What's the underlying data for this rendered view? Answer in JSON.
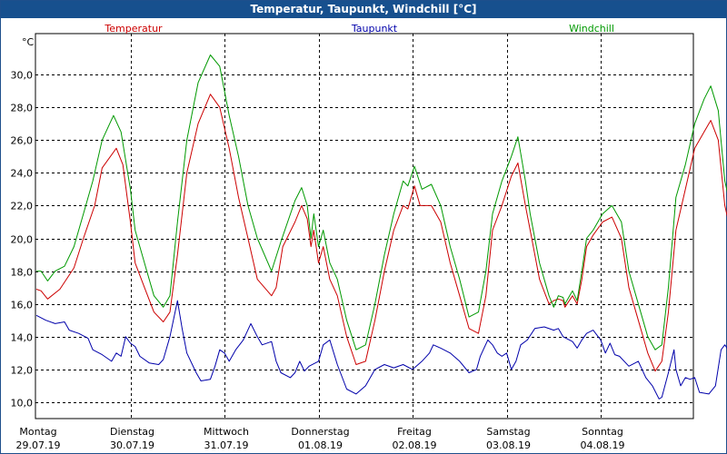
{
  "window": {
    "title": "Temperatur, Taupunkt, Windchill [°C]"
  },
  "chart_data": {
    "type": "line",
    "title": "Temperatur, Taupunkt, Windchill [°C]",
    "ylabel": "°C",
    "ylim": [
      9,
      32.5
    ],
    "xlim": [
      0,
      7.2
    ],
    "yticks": [
      10,
      12,
      14,
      16,
      18,
      20,
      22,
      24,
      26,
      28,
      30
    ],
    "ytick_labels": [
      "10,0",
      "12,0",
      "14,0",
      "16,0",
      "18,0",
      "20,0",
      "22,0",
      "24,0",
      "26,0",
      "28,0",
      "30,0"
    ],
    "grid": true,
    "days": [
      {
        "x": 0,
        "weekday": "Montag",
        "date": "29.07.19"
      },
      {
        "x": 1,
        "weekday": "Dienstag",
        "date": "30.07.19"
      },
      {
        "x": 2,
        "weekday": "Mittwoch",
        "date": "31.07.19"
      },
      {
        "x": 3,
        "weekday": "Donnerstag",
        "date": "01.08.19"
      },
      {
        "x": 4,
        "weekday": "Freitag",
        "date": "02.08.19"
      },
      {
        "x": 5,
        "weekday": "Samstag",
        "date": "03.08.19"
      },
      {
        "x": 6,
        "weekday": "Sonntag",
        "date": "04.08.19"
      }
    ],
    "series": [
      {
        "name": "Temperatur",
        "color": "#cc0000",
        "points": [
          [
            0.0,
            16.9
          ],
          [
            0.05,
            16.8
          ],
          [
            0.12,
            16.3
          ],
          [
            0.25,
            16.9
          ],
          [
            0.4,
            18.2
          ],
          [
            0.5,
            20.0
          ],
          [
            0.62,
            22.0
          ],
          [
            0.7,
            24.3
          ],
          [
            0.85,
            25.5
          ],
          [
            0.92,
            24.5
          ],
          [
            1.0,
            21.0
          ],
          [
            1.05,
            18.5
          ],
          [
            1.15,
            17.0
          ],
          [
            1.25,
            15.5
          ],
          [
            1.35,
            14.9
          ],
          [
            1.42,
            15.5
          ],
          [
            1.5,
            19.0
          ],
          [
            1.6,
            24.0
          ],
          [
            1.72,
            27.0
          ],
          [
            1.85,
            28.8
          ],
          [
            1.95,
            28.0
          ],
          [
            2.05,
            25.5
          ],
          [
            2.15,
            22.5
          ],
          [
            2.25,
            20.0
          ],
          [
            2.35,
            17.5
          ],
          [
            2.5,
            16.5
          ],
          [
            2.55,
            17.0
          ],
          [
            2.62,
            19.5
          ],
          [
            2.75,
            21.0
          ],
          [
            2.82,
            22.0
          ],
          [
            2.88,
            21.2
          ],
          [
            2.92,
            19.5
          ],
          [
            2.95,
            20.5
          ],
          [
            3.0,
            18.5
          ],
          [
            3.05,
            19.5
          ],
          [
            3.12,
            17.5
          ],
          [
            3.2,
            16.5
          ],
          [
            3.3,
            14.0
          ],
          [
            3.4,
            12.3
          ],
          [
            3.5,
            12.5
          ],
          [
            3.6,
            15.0
          ],
          [
            3.7,
            18.0
          ],
          [
            3.8,
            20.5
          ],
          [
            3.9,
            22.0
          ],
          [
            3.95,
            21.8
          ],
          [
            4.02,
            23.2
          ],
          [
            4.08,
            22.0
          ],
          [
            4.2,
            22.0
          ],
          [
            4.3,
            21.0
          ],
          [
            4.4,
            18.5
          ],
          [
            4.5,
            16.5
          ],
          [
            4.6,
            14.5
          ],
          [
            4.7,
            14.2
          ],
          [
            4.78,
            16.5
          ],
          [
            4.85,
            20.5
          ],
          [
            4.95,
            22.0
          ],
          [
            5.05,
            23.8
          ],
          [
            5.12,
            24.6
          ],
          [
            5.2,
            22.0
          ],
          [
            5.25,
            20.5
          ],
          [
            5.35,
            17.5
          ],
          [
            5.45,
            16.0
          ],
          [
            5.5,
            16.2
          ],
          [
            5.55,
            16.3
          ],
          [
            5.6,
            16.2
          ],
          [
            5.62,
            15.8
          ],
          [
            5.7,
            16.5
          ],
          [
            5.75,
            16.0
          ],
          [
            5.8,
            17.5
          ],
          [
            5.85,
            19.5
          ],
          [
            5.92,
            20.2
          ],
          [
            6.02,
            21.0
          ],
          [
            6.12,
            21.3
          ],
          [
            6.22,
            20.0
          ],
          [
            6.3,
            17.0
          ],
          [
            6.4,
            15.0
          ],
          [
            6.5,
            13.0
          ],
          [
            6.58,
            11.9
          ],
          [
            6.65,
            12.5
          ],
          [
            6.72,
            15.5
          ],
          [
            6.8,
            20.5
          ],
          [
            6.9,
            23.0
          ],
          [
            7.0,
            25.5
          ],
          [
            7.1,
            26.5
          ],
          [
            7.17,
            27.2
          ],
          [
            7.25,
            26.0
          ],
          [
            7.32,
            22.0
          ],
          [
            7.4,
            20.0
          ],
          [
            7.45,
            19.5
          ]
        ]
      },
      {
        "name": "Taupunkt",
        "color": "#0000aa",
        "points": [
          [
            0.0,
            15.3
          ],
          [
            0.1,
            15.0
          ],
          [
            0.2,
            14.8
          ],
          [
            0.3,
            14.9
          ],
          [
            0.35,
            14.4
          ],
          [
            0.45,
            14.2
          ],
          [
            0.55,
            13.9
          ],
          [
            0.6,
            13.2
          ],
          [
            0.7,
            12.9
          ],
          [
            0.8,
            12.5
          ],
          [
            0.85,
            13.0
          ],
          [
            0.9,
            12.8
          ],
          [
            0.95,
            14.0
          ],
          [
            1.0,
            13.6
          ],
          [
            1.05,
            13.4
          ],
          [
            1.1,
            12.8
          ],
          [
            1.2,
            12.4
          ],
          [
            1.3,
            12.3
          ],
          [
            1.35,
            12.6
          ],
          [
            1.42,
            14.0
          ],
          [
            1.5,
            16.2
          ],
          [
            1.55,
            14.5
          ],
          [
            1.6,
            13.0
          ],
          [
            1.7,
            11.8
          ],
          [
            1.75,
            11.3
          ],
          [
            1.85,
            11.4
          ],
          [
            1.9,
            12.2
          ],
          [
            1.95,
            13.2
          ],
          [
            2.0,
            13.0
          ],
          [
            2.05,
            12.5
          ],
          [
            2.12,
            13.2
          ],
          [
            2.2,
            13.8
          ],
          [
            2.28,
            14.8
          ],
          [
            2.35,
            14.0
          ],
          [
            2.4,
            13.5
          ],
          [
            2.5,
            13.7
          ],
          [
            2.55,
            12.5
          ],
          [
            2.6,
            11.8
          ],
          [
            2.7,
            11.5
          ],
          [
            2.75,
            11.8
          ],
          [
            2.8,
            12.5
          ],
          [
            2.85,
            11.9
          ],
          [
            2.9,
            12.2
          ],
          [
            3.0,
            12.5
          ],
          [
            3.05,
            13.5
          ],
          [
            3.12,
            13.8
          ],
          [
            3.2,
            12.3
          ],
          [
            3.3,
            10.8
          ],
          [
            3.4,
            10.5
          ],
          [
            3.5,
            11.0
          ],
          [
            3.6,
            12.0
          ],
          [
            3.7,
            12.3
          ],
          [
            3.8,
            12.1
          ],
          [
            3.9,
            12.3
          ],
          [
            4.0,
            12.0
          ],
          [
            4.1,
            12.5
          ],
          [
            4.18,
            13.0
          ],
          [
            4.22,
            13.5
          ],
          [
            4.3,
            13.3
          ],
          [
            4.4,
            13.0
          ],
          [
            4.5,
            12.5
          ],
          [
            4.6,
            11.8
          ],
          [
            4.68,
            12.0
          ],
          [
            4.72,
            12.8
          ],
          [
            4.8,
            13.8
          ],
          [
            4.85,
            13.5
          ],
          [
            4.9,
            13.0
          ],
          [
            4.95,
            12.8
          ],
          [
            5.0,
            13.0
          ],
          [
            5.05,
            12.0
          ],
          [
            5.1,
            12.5
          ],
          [
            5.15,
            13.5
          ],
          [
            5.22,
            13.8
          ],
          [
            5.3,
            14.5
          ],
          [
            5.4,
            14.6
          ],
          [
            5.5,
            14.4
          ],
          [
            5.55,
            14.5
          ],
          [
            5.6,
            14.0
          ],
          [
            5.7,
            13.7
          ],
          [
            5.75,
            13.3
          ],
          [
            5.8,
            13.8
          ],
          [
            5.85,
            14.2
          ],
          [
            5.92,
            14.4
          ],
          [
            6.0,
            13.8
          ],
          [
            6.05,
            13.0
          ],
          [
            6.1,
            13.6
          ],
          [
            6.15,
            12.9
          ],
          [
            6.2,
            12.8
          ],
          [
            6.3,
            12.2
          ],
          [
            6.4,
            12.5
          ],
          [
            6.48,
            11.5
          ],
          [
            6.55,
            11.0
          ],
          [
            6.62,
            10.2
          ],
          [
            6.65,
            10.3
          ],
          [
            6.72,
            11.8
          ],
          [
            6.78,
            13.2
          ],
          [
            6.8,
            12.0
          ],
          [
            6.85,
            11.0
          ],
          [
            6.9,
            11.5
          ],
          [
            6.95,
            11.4
          ],
          [
            7.0,
            11.5
          ],
          [
            7.05,
            10.6
          ],
          [
            7.15,
            10.5
          ],
          [
            7.22,
            11.0
          ],
          [
            7.28,
            13.2
          ],
          [
            7.32,
            13.5
          ],
          [
            7.38,
            13.0
          ],
          [
            7.45,
            12.9
          ]
        ]
      },
      {
        "name": "Windchill",
        "color": "#009900",
        "points": [
          [
            0.0,
            18.0
          ],
          [
            0.05,
            18.0
          ],
          [
            0.12,
            17.4
          ],
          [
            0.2,
            18.0
          ],
          [
            0.3,
            18.3
          ],
          [
            0.4,
            19.5
          ],
          [
            0.5,
            21.5
          ],
          [
            0.6,
            23.5
          ],
          [
            0.7,
            26.0
          ],
          [
            0.82,
            27.5
          ],
          [
            0.9,
            26.5
          ],
          [
            1.0,
            23.0
          ],
          [
            1.05,
            20.5
          ],
          [
            1.15,
            18.5
          ],
          [
            1.25,
            16.5
          ],
          [
            1.35,
            15.8
          ],
          [
            1.42,
            16.5
          ],
          [
            1.5,
            21.0
          ],
          [
            1.6,
            26.0
          ],
          [
            1.72,
            29.5
          ],
          [
            1.85,
            31.2
          ],
          [
            1.95,
            30.5
          ],
          [
            2.05,
            27.5
          ],
          [
            2.15,
            25.0
          ],
          [
            2.25,
            22.0
          ],
          [
            2.35,
            20.0
          ],
          [
            2.5,
            18.0
          ],
          [
            2.6,
            19.8
          ],
          [
            2.75,
            22.3
          ],
          [
            2.82,
            23.1
          ],
          [
            2.88,
            22.0
          ],
          [
            2.92,
            20.0
          ],
          [
            2.95,
            21.5
          ],
          [
            3.0,
            19.5
          ],
          [
            3.05,
            20.5
          ],
          [
            3.12,
            18.5
          ],
          [
            3.2,
            17.5
          ],
          [
            3.3,
            15.0
          ],
          [
            3.4,
            13.2
          ],
          [
            3.5,
            13.5
          ],
          [
            3.6,
            16.0
          ],
          [
            3.7,
            19.0
          ],
          [
            3.8,
            21.5
          ],
          [
            3.9,
            23.5
          ],
          [
            3.95,
            23.2
          ],
          [
            4.02,
            24.4
          ],
          [
            4.1,
            23.0
          ],
          [
            4.2,
            23.3
          ],
          [
            4.3,
            22.0
          ],
          [
            4.4,
            19.5
          ],
          [
            4.5,
            17.5
          ],
          [
            4.6,
            15.2
          ],
          [
            4.7,
            15.5
          ],
          [
            4.78,
            18.0
          ],
          [
            4.85,
            21.5
          ],
          [
            4.95,
            23.5
          ],
          [
            5.05,
            25.0
          ],
          [
            5.12,
            26.2
          ],
          [
            5.2,
            23.5
          ],
          [
            5.25,
            21.5
          ],
          [
            5.35,
            18.5
          ],
          [
            5.45,
            16.5
          ],
          [
            5.5,
            15.8
          ],
          [
            5.55,
            16.5
          ],
          [
            5.6,
            16.4
          ],
          [
            5.62,
            16.0
          ],
          [
            5.7,
            16.8
          ],
          [
            5.75,
            16.2
          ],
          [
            5.8,
            18.0
          ],
          [
            5.85,
            20.0
          ],
          [
            5.92,
            20.5
          ],
          [
            6.02,
            21.5
          ],
          [
            6.12,
            22.0
          ],
          [
            6.22,
            21.0
          ],
          [
            6.3,
            18.0
          ],
          [
            6.4,
            16.0
          ],
          [
            6.5,
            14.0
          ],
          [
            6.58,
            13.2
          ],
          [
            6.65,
            13.5
          ],
          [
            6.72,
            17.0
          ],
          [
            6.8,
            22.5
          ],
          [
            6.9,
            24.5
          ],
          [
            7.0,
            27.0
          ],
          [
            7.1,
            28.5
          ],
          [
            7.17,
            29.3
          ],
          [
            7.25,
            27.8
          ],
          [
            7.32,
            23.5
          ],
          [
            7.4,
            21.5
          ],
          [
            7.45,
            21.0
          ]
        ]
      }
    ]
  }
}
